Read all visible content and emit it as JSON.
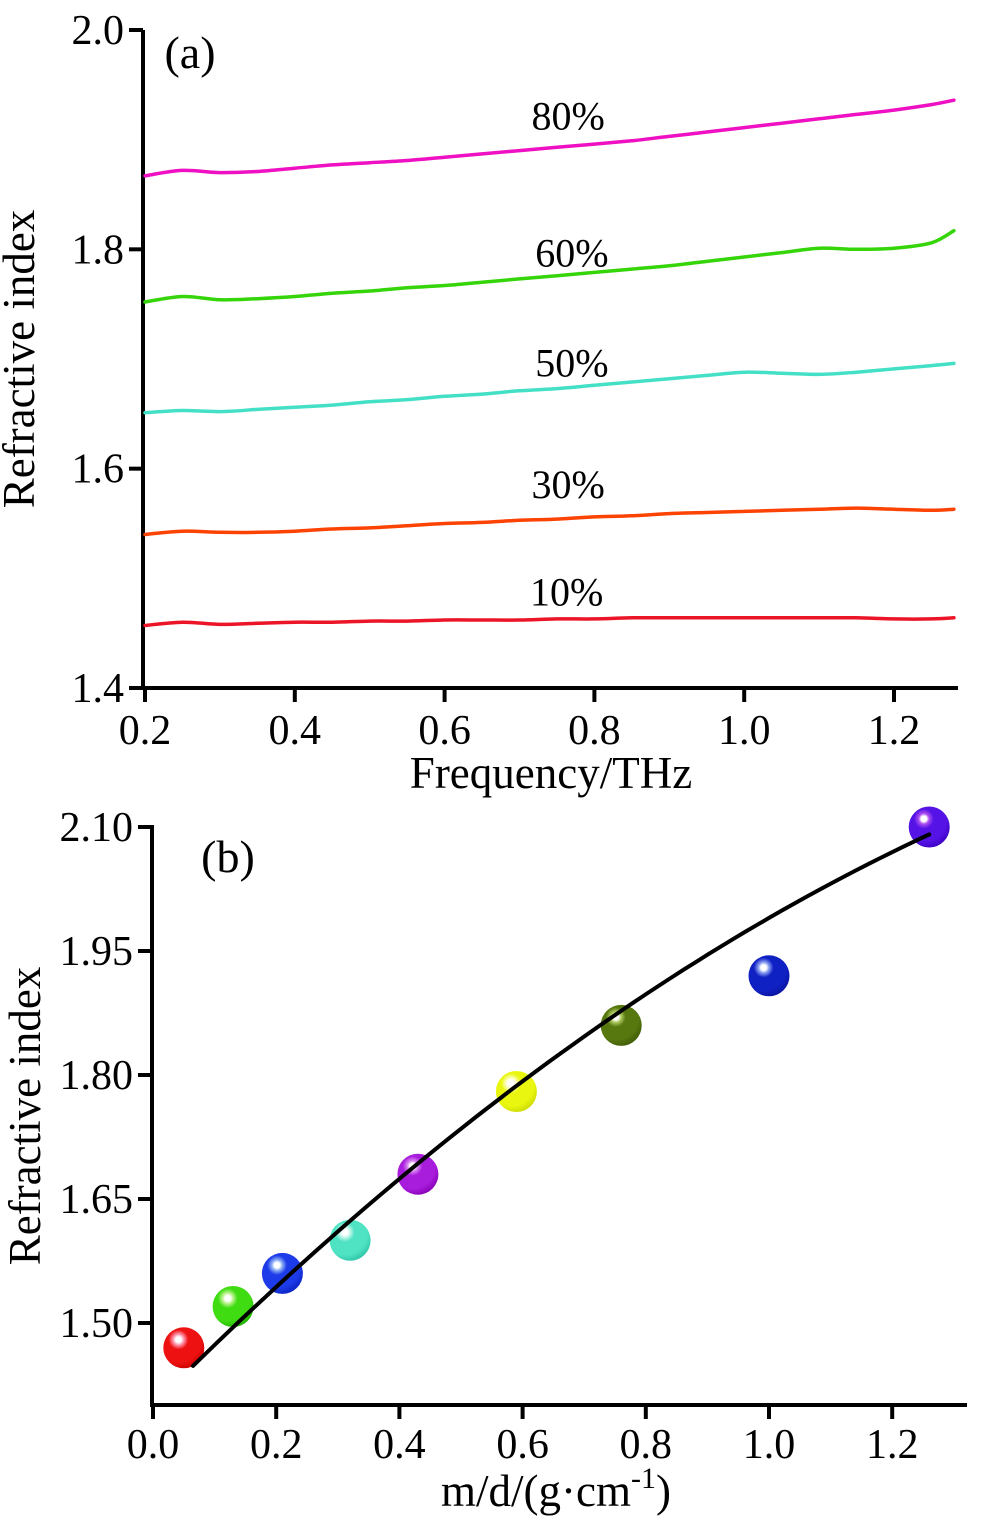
{
  "background_color": "#ffffff",
  "axis_color": "#000000",
  "chart_data": [
    {
      "id": "panel_a",
      "type": "line",
      "tag": "(a)",
      "xlabel": "Frequency/THz",
      "ylabel": "Refractive index",
      "xlim": [
        0.2,
        1.28
      ],
      "ylim": [
        1.4,
        2.0
      ],
      "grid": false,
      "legend_position": "inline labels above each line",
      "x_ticks": [
        0.2,
        0.4,
        0.6,
        0.8,
        1.0,
        1.2
      ],
      "x_tick_labels": [
        "0.2",
        "0.4",
        "0.6",
        "0.8",
        "1.0",
        "1.2"
      ],
      "y_ticks": [
        1.4,
        1.6,
        1.8,
        2.0
      ],
      "y_tick_labels": [
        "1.4",
        "1.6",
        "1.8",
        "2.0"
      ],
      "x": [
        0.2,
        0.25,
        0.3,
        0.35,
        0.4,
        0.45,
        0.5,
        0.55,
        0.6,
        0.65,
        0.7,
        0.75,
        0.8,
        0.85,
        0.9,
        0.95,
        1.0,
        1.05,
        1.1,
        1.15,
        1.2,
        1.25,
        1.28
      ],
      "series": [
        {
          "name": "80%",
          "color": "#ee10c2",
          "label_x": 0.765,
          "label_y": 1.922,
          "values": [
            1.867,
            1.872,
            1.87,
            1.871,
            1.874,
            1.877,
            1.879,
            1.881,
            1.884,
            1.887,
            1.89,
            1.893,
            1.896,
            1.899,
            1.903,
            1.907,
            1.911,
            1.915,
            1.919,
            1.923,
            1.927,
            1.932,
            1.936
          ]
        },
        {
          "name": "60%",
          "color": "#35d50a",
          "label_x": 0.77,
          "label_y": 1.797,
          "values": [
            1.752,
            1.757,
            1.754,
            1.755,
            1.757,
            1.76,
            1.762,
            1.765,
            1.767,
            1.77,
            1.773,
            1.776,
            1.779,
            1.782,
            1.785,
            1.789,
            1.793,
            1.797,
            1.801,
            1.8,
            1.801,
            1.806,
            1.817
          ]
        },
        {
          "name": "50%",
          "color": "#44e0c6",
          "label_x": 0.77,
          "label_y": 1.697,
          "values": [
            1.651,
            1.653,
            1.652,
            1.654,
            1.656,
            1.658,
            1.661,
            1.663,
            1.666,
            1.668,
            1.671,
            1.673,
            1.676,
            1.679,
            1.682,
            1.685,
            1.688,
            1.687,
            1.686,
            1.688,
            1.691,
            1.694,
            1.696
          ]
        },
        {
          "name": "30%",
          "color": "#fc4303",
          "label_x": 0.765,
          "label_y": 1.586,
          "values": [
            1.54,
            1.543,
            1.542,
            1.542,
            1.543,
            1.545,
            1.546,
            1.548,
            1.55,
            1.551,
            1.553,
            1.554,
            1.556,
            1.557,
            1.559,
            1.56,
            1.561,
            1.562,
            1.563,
            1.564,
            1.563,
            1.562,
            1.563
          ]
        },
        {
          "name": "10%",
          "color": "#ec1528",
          "label_x": 0.763,
          "label_y": 1.488,
          "values": [
            1.457,
            1.46,
            1.458,
            1.459,
            1.46,
            1.46,
            1.461,
            1.461,
            1.462,
            1.462,
            1.462,
            1.463,
            1.463,
            1.464,
            1.464,
            1.464,
            1.464,
            1.464,
            1.464,
            1.464,
            1.463,
            1.463,
            1.464
          ]
        }
      ]
    },
    {
      "id": "panel_b",
      "type": "scatter",
      "tag": "(b)",
      "xlabel": "m/d/(g·cm⁻¹)",
      "xlabel_parts": {
        "prefix": "m/d/(g·cm",
        "superscript": "-1",
        "suffix": ")"
      },
      "ylabel": "Refractive index",
      "xlim": [
        0.0,
        1.3
      ],
      "ylim": [
        1.4,
        2.12
      ],
      "grid": false,
      "x_ticks": [
        0.0,
        0.2,
        0.4,
        0.6,
        0.8,
        1.0,
        1.2
      ],
      "x_tick_labels": [
        "0.0",
        "0.2",
        "0.4",
        "0.6",
        "0.8",
        "1.0",
        "1.2"
      ],
      "y_ticks": [
        1.5,
        1.65,
        1.8,
        1.95,
        2.1
      ],
      "y_tick_labels": [
        "1.50",
        "1.65",
        "1.80",
        "1.95",
        "2.10"
      ],
      "points": [
        {
          "x": 0.05,
          "y": 1.47,
          "color": "#ee1111",
          "ring": "#ff9bb4",
          "edge": "#c40000",
          "label": "sphere-red"
        },
        {
          "x": 0.13,
          "y": 1.52,
          "color": "#3fdc12",
          "ring": "#bdf48f",
          "edge": "#1fae00",
          "label": "sphere-green"
        },
        {
          "x": 0.21,
          "y": 1.56,
          "color": "#1d3be8",
          "ring": "#8fb0f5",
          "edge": "#0a22c0",
          "label": "sphere-blue"
        },
        {
          "x": 0.32,
          "y": 1.6,
          "color": "#4fe3c4",
          "ring": "#c8f7ea",
          "edge": "#2cc3a4",
          "label": "sphere-turquoise"
        },
        {
          "x": 0.43,
          "y": 1.68,
          "color": "#a81cdc",
          "ring": "#d886f2",
          "edge": "#8500b5",
          "label": "sphere-purple"
        },
        {
          "x": 0.59,
          "y": 1.78,
          "color": "#e9f710",
          "ring": "#fdffc4",
          "edge": "#ccd800",
          "label": "sphere-yellow"
        },
        {
          "x": 0.76,
          "y": 1.86,
          "color": "#57770f",
          "ring": "#afcb62",
          "edge": "#3f5a06",
          "label": "sphere-olive"
        },
        {
          "x": 1.0,
          "y": 1.92,
          "color": "#1021c4",
          "ring": "#8ca2f2",
          "edge": "#0a139e",
          "label": "sphere-darkblue"
        },
        {
          "x": 1.26,
          "y": 2.1,
          "color": "#5513e6",
          "ring": "#ae4ff0",
          "edge": "#3c00bf",
          "label": "sphere-violet"
        }
      ],
      "fit_curve": {
        "type": "quadratic",
        "equation": "y = 1.40 + 0.75x - 0.16x^2",
        "a0": 1.4,
        "a1": 0.75,
        "a2": -0.16,
        "x_start": 0.065,
        "x_end": 1.26,
        "color": "#000000"
      }
    }
  ]
}
